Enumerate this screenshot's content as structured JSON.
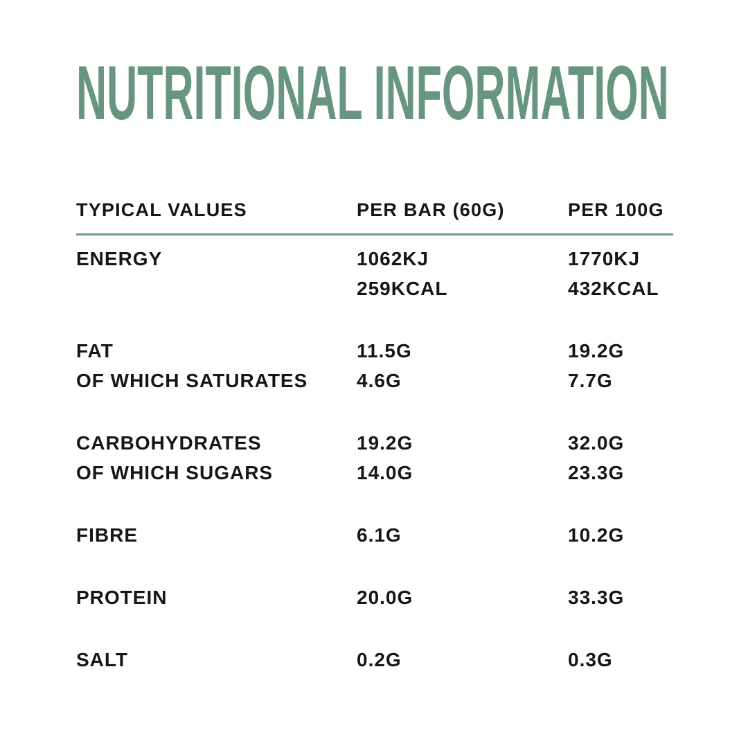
{
  "title": "NUTRITIONAL INFORMATION",
  "colors": {
    "title_green": "#67957f",
    "divider_green": "#6b9b85",
    "text_black": "#161616",
    "page_bg": "#ffffff"
  },
  "table": {
    "headers": {
      "col1": "TYPICAL VALUES",
      "col2": "PER BAR (60G)",
      "col3": "PER 100G"
    },
    "groups": [
      {
        "rows": [
          {
            "label": "ENERGY",
            "per_bar": "1062KJ",
            "per_100g": "1770KJ"
          },
          {
            "label": "",
            "per_bar": "259KCAL",
            "per_100g": "432KCAL"
          }
        ]
      },
      {
        "rows": [
          {
            "label": "FAT",
            "per_bar": "11.5G",
            "per_100g": "19.2G"
          },
          {
            "label": "OF WHICH SATURATES",
            "per_bar": "4.6G",
            "per_100g": "7.7G"
          }
        ]
      },
      {
        "rows": [
          {
            "label": "CARBOHYDRATES",
            "per_bar": "19.2G",
            "per_100g": "32.0G"
          },
          {
            "label": "OF WHICH SUGARS",
            "per_bar": "14.0G",
            "per_100g": "23.3G"
          }
        ]
      },
      {
        "rows": [
          {
            "label": "FIBRE",
            "per_bar": "6.1G",
            "per_100g": "10.2G"
          }
        ]
      },
      {
        "rows": [
          {
            "label": "PROTEIN",
            "per_bar": "20.0G",
            "per_100g": "33.3G"
          }
        ]
      },
      {
        "rows": [
          {
            "label": "SALT",
            "per_bar": "0.2G",
            "per_100g": "0.3G"
          }
        ]
      }
    ]
  }
}
